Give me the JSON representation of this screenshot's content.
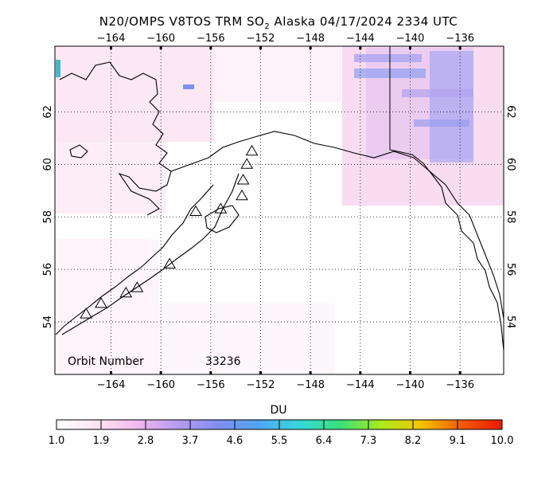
{
  "title": {
    "prefix": "N20/OMPS V8TOS TRM SO",
    "subscript": "2",
    "suffix": " Alaska 04/17/2024 2334 UTC"
  },
  "map": {
    "lon_ticks": [
      "−164",
      "−160",
      "−156",
      "−152",
      "−148",
      "−144",
      "−140",
      "−136"
    ],
    "lat_ticks": [
      "62",
      "60",
      "58",
      "56",
      "54"
    ],
    "lon_range": [
      -168.5,
      -132.5
    ],
    "lat_range": [
      52.0,
      64.5
    ],
    "orbit_label": "Orbit Number",
    "orbit_number": "33236",
    "volcano_marker": "triangle",
    "colors": {
      "land_outline": "#000000",
      "grid": "#000000",
      "background": "#ffffff"
    }
  },
  "colorbar": {
    "label": "DU",
    "ticks": [
      "1.0",
      "1.9",
      "2.8",
      "3.7",
      "4.6",
      "5.5",
      "6.4",
      "7.3",
      "8.2",
      "9.1",
      "10.0"
    ],
    "min": 1.0,
    "max": 10.0,
    "colors": [
      "#ffffff",
      "#fde4f2",
      "#f2b8ee",
      "#b79af0",
      "#7f8ff0",
      "#4fa6f5",
      "#34d9d9",
      "#38e07a",
      "#a8ec1e",
      "#f5c400",
      "#f05a00",
      "#e81a00"
    ]
  }
}
